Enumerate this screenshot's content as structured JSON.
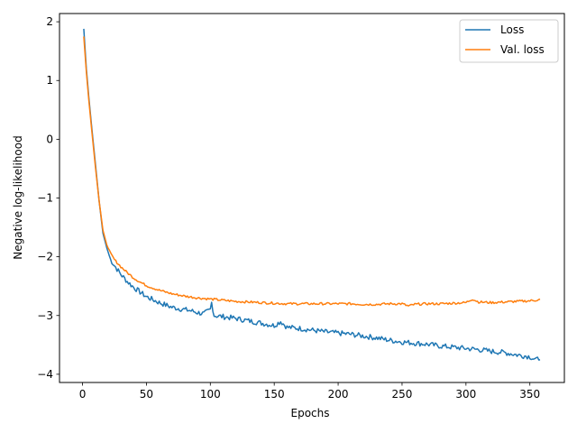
{
  "chart_data": {
    "type": "line",
    "title": "",
    "xlabel": "Epochs",
    "ylabel": "Negative log-likelihood",
    "xlim": [
      -18,
      377
    ],
    "ylim": [
      -4.14,
      2.14
    ],
    "xticks": [
      0,
      50,
      100,
      150,
      200,
      250,
      300,
      350
    ],
    "yticks": [
      2,
      1,
      0,
      -1,
      -2,
      -3,
      -4
    ],
    "ytick_labels": [
      "2",
      "1",
      "0",
      "−1",
      "−2",
      "−3",
      "−4"
    ],
    "grid": false,
    "legend": "top-right",
    "series": [
      {
        "name": "Loss",
        "color": "#1f77b4",
        "x": [
          1,
          3,
          5,
          7,
          10,
          13,
          16,
          19,
          22,
          25,
          30,
          35,
          40,
          45,
          50,
          55,
          60,
          65,
          70,
          75,
          80,
          85,
          90,
          95,
          100,
          101,
          103,
          110,
          120,
          130,
          140,
          150,
          155,
          160,
          170,
          180,
          190,
          200,
          210,
          220,
          230,
          240,
          250,
          260,
          270,
          280,
          290,
          300,
          310,
          320,
          330,
          340,
          350,
          355,
          358
        ],
        "y": [
          1.88,
          1.2,
          0.7,
          0.25,
          -0.4,
          -1.05,
          -1.6,
          -1.85,
          -2.05,
          -2.15,
          -2.3,
          -2.42,
          -2.52,
          -2.6,
          -2.68,
          -2.73,
          -2.78,
          -2.82,
          -2.86,
          -2.88,
          -2.9,
          -2.92,
          -2.95,
          -2.97,
          -2.9,
          -2.78,
          -3.0,
          -3.02,
          -3.05,
          -3.09,
          -3.13,
          -3.17,
          -3.1,
          -3.2,
          -3.22,
          -3.25,
          -3.28,
          -3.3,
          -3.32,
          -3.35,
          -3.38,
          -3.42,
          -3.45,
          -3.47,
          -3.49,
          -3.52,
          -3.54,
          -3.56,
          -3.58,
          -3.61,
          -3.63,
          -3.67,
          -3.7,
          -3.76,
          -3.71
        ]
      },
      {
        "name": "Val. loss",
        "color": "#ff7f0e",
        "x": [
          1,
          3,
          5,
          7,
          10,
          13,
          16,
          19,
          22,
          25,
          30,
          35,
          40,
          45,
          50,
          55,
          60,
          65,
          70,
          80,
          90,
          100,
          110,
          120,
          130,
          140,
          150,
          160,
          170,
          180,
          190,
          200,
          210,
          220,
          230,
          240,
          250,
          255,
          260,
          270,
          280,
          290,
          300,
          305,
          310,
          320,
          330,
          340,
          350,
          358
        ],
        "y": [
          1.75,
          1.15,
          0.65,
          0.2,
          -0.45,
          -1.05,
          -1.55,
          -1.8,
          -1.95,
          -2.05,
          -2.17,
          -2.27,
          -2.36,
          -2.43,
          -2.49,
          -2.53,
          -2.57,
          -2.6,
          -2.63,
          -2.67,
          -2.7,
          -2.72,
          -2.74,
          -2.76,
          -2.77,
          -2.78,
          -2.79,
          -2.8,
          -2.8,
          -2.8,
          -2.8,
          -2.8,
          -2.8,
          -2.81,
          -2.81,
          -2.8,
          -2.8,
          -2.84,
          -2.81,
          -2.8,
          -2.8,
          -2.79,
          -2.78,
          -2.72,
          -2.77,
          -2.78,
          -2.77,
          -2.76,
          -2.75,
          -2.73
        ]
      }
    ]
  }
}
